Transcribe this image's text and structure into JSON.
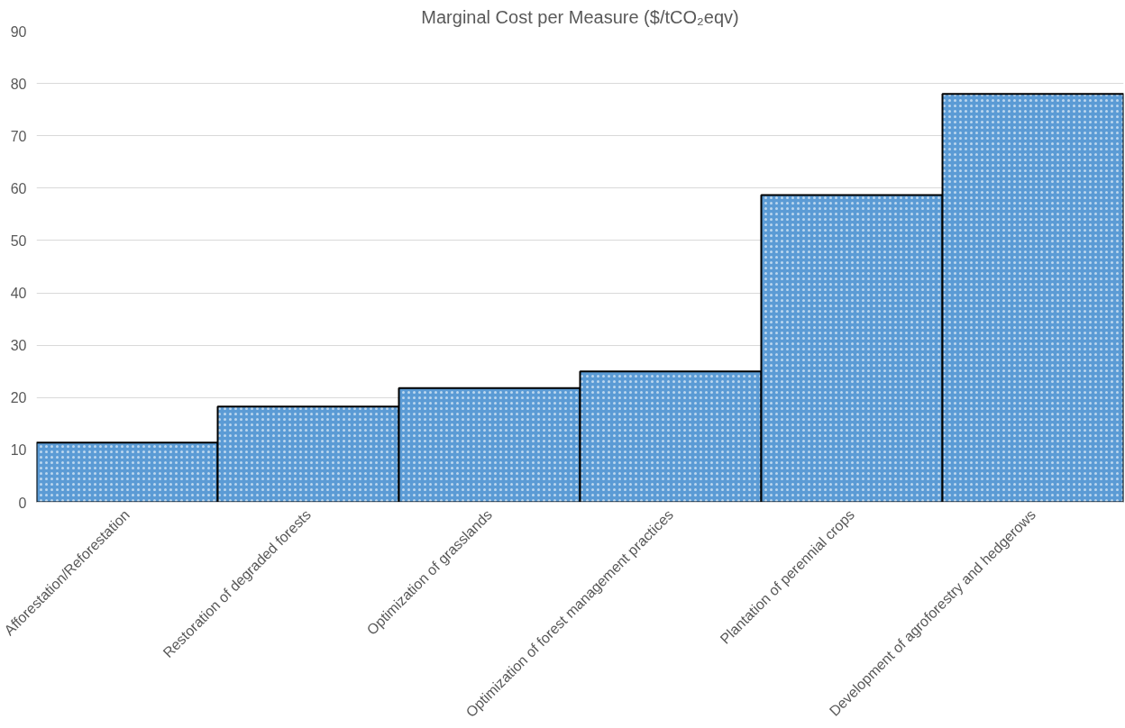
{
  "chart_data": {
    "type": "bar",
    "title": "Marginal Cost per Measure ($/tCO₂eqv)",
    "categories": [
      "Afforestation/Reforestation",
      "Restoration of degraded forests",
      "Optimization of grasslands",
      "Optimization of forest management practices",
      "Plantation of perennial crops",
      "Development of agroforestry and hedgerows"
    ],
    "values": [
      11.4,
      18.3,
      21.8,
      25,
      58.7,
      78
    ],
    "color": "#5b9bd5",
    "ylim": [
      0,
      90
    ],
    "yticks": [
      0,
      10,
      20,
      30,
      40,
      50,
      60,
      70,
      80,
      90
    ],
    "grid": "y"
  }
}
